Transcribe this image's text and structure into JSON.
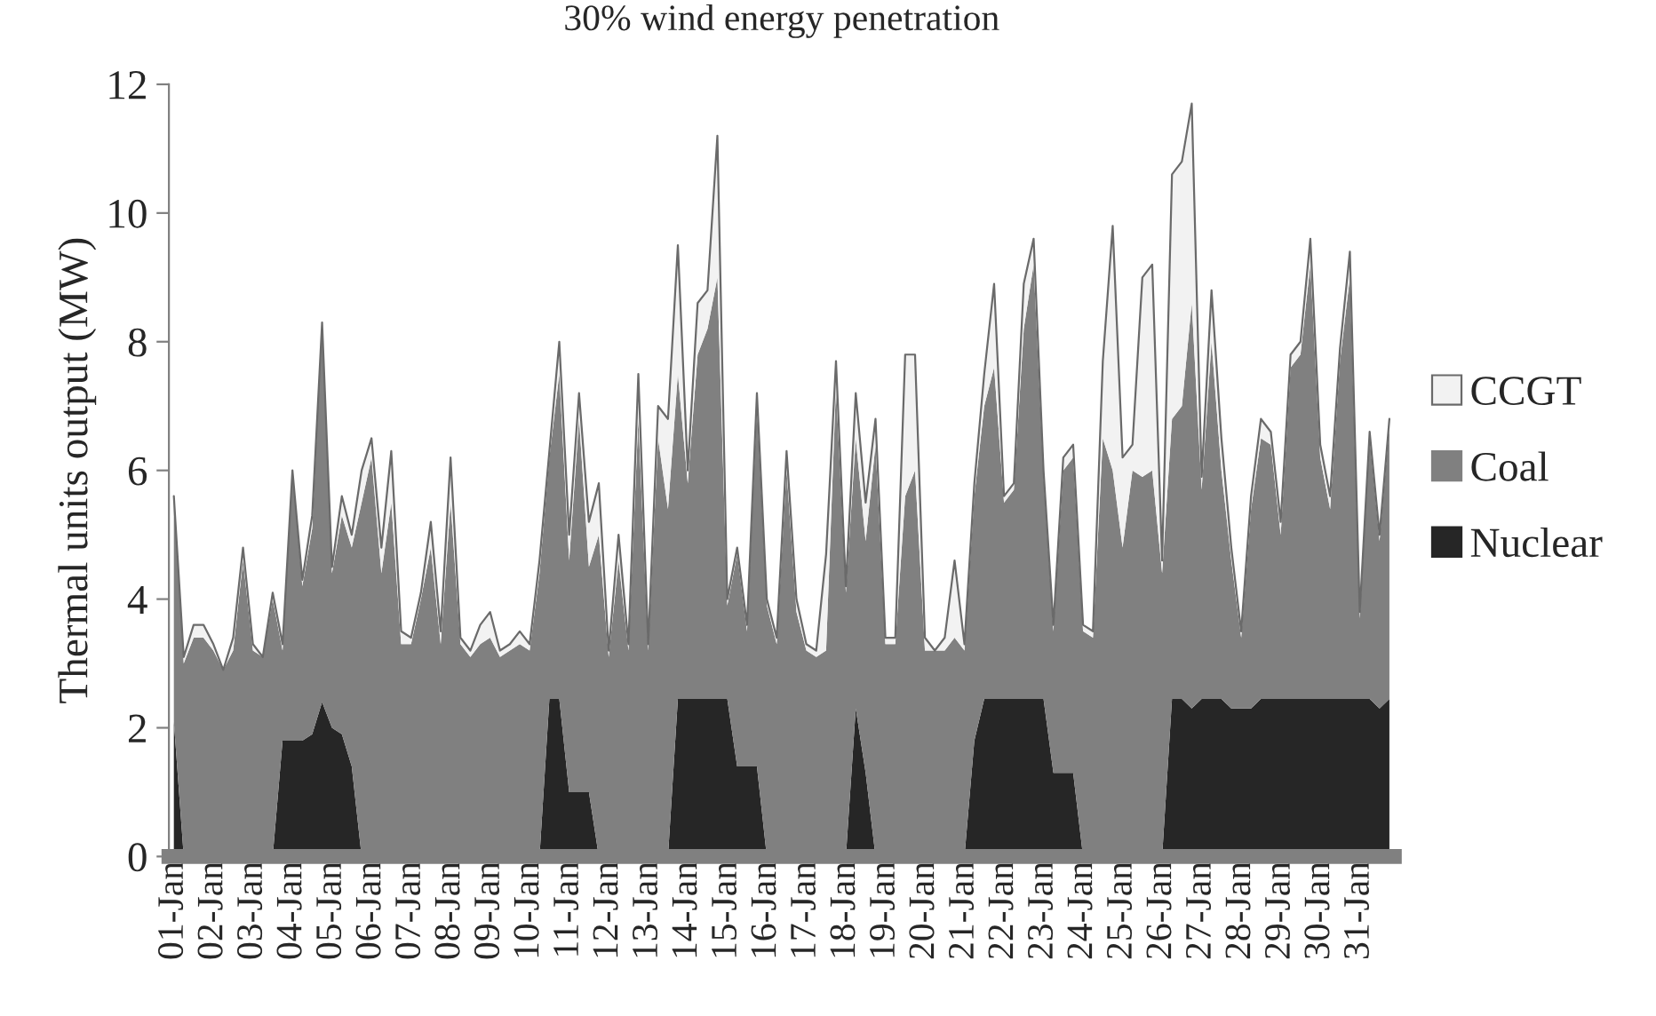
{
  "chart_data": {
    "type": "area",
    "stacked": true,
    "title": "30% wind energy penetration",
    "ylabel": "Thermal units output (MW)",
    "categories": [
      "01-Jan",
      null,
      null,
      null,
      "02-Jan",
      null,
      null,
      null,
      "03-Jan",
      null,
      null,
      null,
      "04-Jan",
      null,
      null,
      null,
      "05-Jan",
      null,
      null,
      null,
      "06-Jan",
      null,
      null,
      null,
      "07-Jan",
      null,
      null,
      null,
      "08-Jan",
      null,
      null,
      null,
      "09-Jan",
      null,
      null,
      null,
      "10-Jan",
      null,
      null,
      null,
      "11-Jan",
      null,
      null,
      null,
      "12-Jan",
      null,
      null,
      null,
      "13-Jan",
      null,
      null,
      null,
      "14-Jan",
      null,
      null,
      null,
      "15-Jan",
      null,
      null,
      null,
      "16-Jan",
      null,
      null,
      null,
      "17-Jan",
      null,
      null,
      null,
      "18-Jan",
      null,
      null,
      null,
      "19-Jan",
      null,
      null,
      null,
      "20-Jan",
      null,
      null,
      null,
      "21-Jan",
      null,
      null,
      null,
      "22-Jan",
      null,
      null,
      null,
      "23-Jan",
      null,
      null,
      null,
      "24-Jan",
      null,
      null,
      null,
      "25-Jan",
      null,
      null,
      null,
      "26-Jan",
      null,
      null,
      null,
      "27-Jan",
      null,
      null,
      null,
      "28-Jan",
      null,
      null,
      null,
      "29-Jan",
      null,
      null,
      null,
      "30-Jan",
      null,
      null,
      null,
      "31-Jan",
      null,
      null,
      null
    ],
    "series": [
      {
        "name": "Nuclear",
        "color": "#262626",
        "values": [
          2.1,
          0,
          0,
          0,
          0,
          0,
          0,
          0,
          0,
          0,
          0,
          1.8,
          1.8,
          1.8,
          1.9,
          2.4,
          2.0,
          1.9,
          1.4,
          0,
          0,
          0,
          0,
          0,
          0,
          0,
          0,
          0,
          0,
          0,
          0,
          0,
          0,
          0,
          0,
          0,
          0,
          0,
          2.45,
          2.45,
          1.0,
          1.0,
          1.0,
          0,
          0,
          0,
          0,
          0,
          0,
          0,
          0,
          2.45,
          2.45,
          2.45,
          2.45,
          2.45,
          2.45,
          1.4,
          1.4,
          1.4,
          0,
          0,
          0,
          0,
          0,
          0,
          0,
          0,
          0,
          2.3,
          1.3,
          0,
          0,
          0,
          0,
          0,
          0,
          0,
          0,
          0,
          0,
          1.8,
          2.45,
          2.45,
          2.45,
          2.45,
          2.45,
          2.45,
          2.45,
          1.3,
          1.3,
          1.3,
          0,
          0,
          0,
          0,
          0,
          0,
          0,
          0,
          0,
          2.45,
          2.45,
          2.3,
          2.45,
          2.45,
          2.45,
          2.3,
          2.3,
          2.3,
          2.45,
          2.45,
          2.45,
          2.45,
          2.45,
          2.45,
          2.45,
          2.45,
          2.45,
          2.45,
          2.45,
          2.45,
          2.3,
          2.45
        ]
      },
      {
        "name": "Coal",
        "color": "#808080",
        "values": [
          3.5,
          3.0,
          3.4,
          3.4,
          3.2,
          2.9,
          3.2,
          4.6,
          3.2,
          3.1,
          4.0,
          1.4,
          4.2,
          2.4,
          3.2,
          5.9,
          2.4,
          3.4,
          3.4,
          5.5,
          6.2,
          4.4,
          5.5,
          3.3,
          3.3,
          4.0,
          4.8,
          3.3,
          5.5,
          3.3,
          3.1,
          3.3,
          3.4,
          3.1,
          3.2,
          3.3,
          3.2,
          4.4,
          3.75,
          5.05,
          3.6,
          5.8,
          3.5,
          5.0,
          3.1,
          4.6,
          3.2,
          6.8,
          3.2,
          6.5,
          5.4,
          5.05,
          3.35,
          5.35,
          5.75,
          6.55,
          1.45,
          3.3,
          2.1,
          5.6,
          3.9,
          3.3,
          6.0,
          3.8,
          3.2,
          3.1,
          3.2,
          7.3,
          4.1,
          4.2,
          3.6,
          6.4,
          3.3,
          3.3,
          5.6,
          6.0,
          3.2,
          3.2,
          3.2,
          3.4,
          3.2,
          3.8,
          4.55,
          5.15,
          3.05,
          3.25,
          5.75,
          6.75,
          3.45,
          2.2,
          4.7,
          4.9,
          3.5,
          3.4,
          6.5,
          6.0,
          4.8,
          6.0,
          5.9,
          6.0,
          4.4,
          4.35,
          4.55,
          6.3,
          3.25,
          5.55,
          3.55,
          2.3,
          1.1,
          3.1,
          4.05,
          3.95,
          2.55,
          5.15,
          5.35,
          6.75,
          3.75,
          2.95,
          5.25,
          6.55,
          1.25,
          4.05,
          2.6,
          4.25
        ]
      },
      {
        "name": "CCGT",
        "color": "#f2f2f2",
        "values": [
          0,
          0.1,
          0.2,
          0.2,
          0.1,
          0,
          0.2,
          0.2,
          0.1,
          0,
          0.1,
          0.1,
          0,
          0.1,
          0.2,
          0,
          0.1,
          0.3,
          0.2,
          0.5,
          0.3,
          0.4,
          0.8,
          0.2,
          0.1,
          0.1,
          0.4,
          0.2,
          0.7,
          0.1,
          0.1,
          0.3,
          0.4,
          0.1,
          0.1,
          0.2,
          0.1,
          0.2,
          0.1,
          0.5,
          0.4,
          0.4,
          0.7,
          0.8,
          0.1,
          0.4,
          0.1,
          0.7,
          0.1,
          0.5,
          1.4,
          2.0,
          0.2,
          0.8,
          0.6,
          2.2,
          0.1,
          0.1,
          0.1,
          0.2,
          0.1,
          0.1,
          0.3,
          0.2,
          0.1,
          0.1,
          1.5,
          0.4,
          0.1,
          0.7,
          0.6,
          0.4,
          0.1,
          0.1,
          2.2,
          1.8,
          0.2,
          0,
          0.2,
          1.2,
          0.1,
          0.2,
          0.5,
          1.3,
          0.1,
          0.1,
          0.7,
          0.4,
          0.1,
          0.1,
          0.2,
          0.2,
          0.1,
          0.1,
          1.2,
          3.8,
          1.4,
          0.4,
          3.1,
          3.2,
          0.2,
          3.8,
          3.8,
          3.1,
          0.2,
          0.8,
          0.5,
          0.2,
          0.1,
          0.2,
          0.3,
          0.2,
          0.2,
          0.2,
          0.2,
          0.4,
          0.2,
          0.2,
          0.2,
          0.4,
          0.1,
          0.1,
          0.1,
          0.1
        ]
      }
    ],
    "ylim": [
      0,
      12
    ],
    "yticks": [
      0,
      2,
      4,
      6,
      8,
      10,
      12
    ],
    "grid": false,
    "legend": "right"
  }
}
